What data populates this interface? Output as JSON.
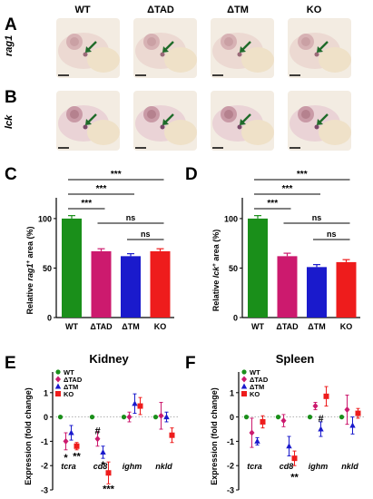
{
  "columns": [
    "WT",
    "ΔTAD",
    "ΔTM",
    "KO"
  ],
  "panel_letters": {
    "A": "A",
    "B": "B",
    "C": "C",
    "D": "D",
    "E": "E",
    "F": "F"
  },
  "rows": [
    {
      "gene": "rag1",
      "tint": "#efdcd8"
    },
    {
      "gene": "lck",
      "tint": "#ebd6de"
    }
  ],
  "colors": {
    "WT": "#1a8f1a",
    "dTAD": "#cc1a6e",
    "dTM": "#1a1acc",
    "KO": "#ee1c1c",
    "arrow": "#1f6b2a"
  },
  "chart_data": [
    {
      "id": "C",
      "type": "bar",
      "categories": [
        "WT",
        "ΔTAD",
        "ΔTM",
        "KO"
      ],
      "values": [
        100,
        67,
        62,
        67
      ],
      "errors": [
        3,
        2.5,
        2.5,
        2.5
      ],
      "ylabel_pre": "Relative ",
      "ylabel_gene": "rag1",
      "ylabel_sup": "+",
      "ylabel_post": " area (%)",
      "ylim": [
        0,
        110
      ],
      "yticks": [
        "0",
        "50",
        "100"
      ],
      "significance": [
        {
          "from": 0,
          "to": 3,
          "label": "***"
        },
        {
          "from": 0,
          "to": 2,
          "label": "***"
        },
        {
          "from": 0,
          "to": 1,
          "label": "***"
        },
        {
          "from": 1,
          "to": 3,
          "label": "ns"
        },
        {
          "from": 2,
          "to": 3,
          "label": "ns"
        }
      ]
    },
    {
      "id": "D",
      "type": "bar",
      "categories": [
        "WT",
        "ΔTAD",
        "ΔTM",
        "KO"
      ],
      "values": [
        100,
        62,
        51,
        56
      ],
      "errors": [
        3,
        3,
        2.5,
        2.5
      ],
      "ylabel_pre": "Relative ",
      "ylabel_gene": "lck",
      "ylabel_sup": "+",
      "ylabel_post": " area (%)",
      "ylim": [
        0,
        110
      ],
      "yticks": [
        "0",
        "50",
        "100"
      ],
      "significance": [
        {
          "from": 0,
          "to": 3,
          "label": "***"
        },
        {
          "from": 0,
          "to": 2,
          "label": "***"
        },
        {
          "from": 0,
          "to": 1,
          "label": "***"
        },
        {
          "from": 1,
          "to": 3,
          "label": "ns"
        },
        {
          "from": 2,
          "to": 3,
          "label": "ns"
        }
      ]
    },
    {
      "id": "E",
      "type": "scatter",
      "title": "Kidney",
      "ylabel": "Expression (fold change)",
      "ylim": [
        -3,
        2
      ],
      "yticks": [
        "-3",
        "-2",
        "-1",
        "0",
        "1"
      ],
      "categories": [
        "tcra",
        "cd8",
        "ighm",
        "nkld"
      ],
      "legend": [
        "WT",
        "ΔTAD",
        "ΔTM",
        "KO"
      ],
      "series": [
        {
          "name": "WT",
          "marker": "circle",
          "values": [
            0,
            0,
            0,
            0
          ],
          "errors": [
            0,
            0,
            0,
            0
          ]
        },
        {
          "name": "ΔTAD",
          "marker": "diamond",
          "values": [
            -1.0,
            -0.9,
            0.0,
            0.05
          ],
          "errors": [
            0.35,
            0.3,
            0.2,
            0.55
          ]
        },
        {
          "name": "ΔTM",
          "marker": "triangle",
          "values": [
            -0.65,
            -1.45,
            0.55,
            0.0
          ],
          "errors": [
            0.3,
            0.25,
            0.4,
            0.2
          ]
        },
        {
          "name": "KO",
          "marker": "square",
          "values": [
            -1.2,
            -2.3,
            0.45,
            -0.75
          ],
          "errors": [
            0.15,
            0.45,
            0.35,
            0.3
          ]
        }
      ],
      "annotations": [
        {
          "cat": 0,
          "series": 1,
          "label": "*",
          "y": -1.65
        },
        {
          "cat": 0,
          "series": 3,
          "label": "**",
          "y": -1.6
        },
        {
          "cat": 1,
          "series": 1,
          "label": "#",
          "y": -0.55
        },
        {
          "cat": 1,
          "series": 2,
          "label": "*",
          "y": -1.95
        },
        {
          "cat": 1,
          "series": 3,
          "label": "***",
          "y": -2.95
        }
      ]
    },
    {
      "id": "F",
      "type": "scatter",
      "title": "Spleen",
      "ylabel": "Expression (fold change)",
      "ylim": [
        -3,
        2
      ],
      "yticks": [
        "-3",
        "-2",
        "-1",
        "0",
        "1"
      ],
      "categories": [
        "tcra",
        "cd8",
        "ighm",
        "nkld"
      ],
      "legend": [
        "WT",
        "ΔTAD",
        "ΔTM",
        "KO"
      ],
      "series": [
        {
          "name": "WT",
          "marker": "circle",
          "values": [
            0,
            0,
            0,
            0
          ],
          "errors": [
            0,
            0,
            0,
            0
          ]
        },
        {
          "name": "ΔTAD",
          "marker": "diamond",
          "values": [
            -0.65,
            -0.15,
            0.45,
            0.3
          ],
          "errors": [
            0.6,
            0.25,
            0.15,
            0.6
          ]
        },
        {
          "name": "ΔTM",
          "marker": "triangle",
          "values": [
            -1.0,
            -1.2,
            -0.5,
            -0.35
          ],
          "errors": [
            0.15,
            0.4,
            0.3,
            0.35
          ]
        },
        {
          "name": "KO",
          "marker": "square",
          "values": [
            -0.2,
            -1.7,
            0.85,
            0.15
          ],
          "errors": [
            0.25,
            0.3,
            0.4,
            0.2
          ]
        }
      ],
      "annotations": [
        {
          "cat": 2,
          "series": 2,
          "label": "#",
          "y": -0.05
        },
        {
          "cat": 1,
          "series": 3,
          "label": "**",
          "y": -2.45
        }
      ]
    }
  ]
}
